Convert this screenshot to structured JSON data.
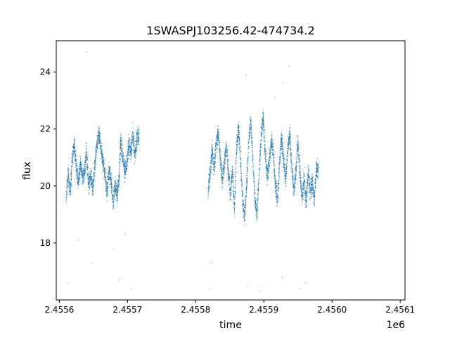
{
  "chart_data": {
    "type": "scatter",
    "title": "1SWASPJ103256.42-474734.2",
    "xlabel": "time",
    "ylabel": "flux",
    "x_offset_label": "1e6",
    "xlim": [
      2455595.5,
      2456107.0
    ],
    "ylim": [
      16.0,
      25.1
    ],
    "x_ticks": [
      2455600,
      2455700,
      2455800,
      2455900,
      2456000,
      2456100
    ],
    "x_tick_labels": [
      "2.4556",
      "2.4557",
      "2.4558",
      "2.4559",
      "2.4560",
      "2.4561"
    ],
    "y_ticks": [
      18,
      20,
      22,
      24
    ],
    "y_tick_labels": [
      "18",
      "20",
      "22",
      "24"
    ],
    "grid": false,
    "point_color": "#1f77b4",
    "point_count_note": "dense light-curve scatter of small points",
    "series": [
      {
        "values": [
          [
            2455610,
            19.6
          ],
          [
            2455613,
            20.4
          ],
          [
            2455616,
            19.8
          ],
          [
            2455619,
            20.9
          ],
          [
            2455622,
            21.5
          ],
          [
            2455625,
            20.6
          ],
          [
            2455628,
            20.1
          ],
          [
            2455631,
            20.8
          ],
          [
            2455634,
            20.3
          ],
          [
            2455637,
            20.5
          ],
          [
            2455640,
            21.2
          ],
          [
            2455643,
            20.0
          ],
          [
            2455646,
            20.4
          ],
          [
            2455649,
            19.9
          ],
          [
            2455652,
            20.7
          ],
          [
            2455655,
            21.4
          ],
          [
            2455658,
            21.9
          ],
          [
            2455661,
            21.3
          ],
          [
            2455664,
            20.9
          ],
          [
            2455667,
            20.4
          ],
          [
            2455670,
            19.8
          ],
          [
            2455673,
            20.6
          ],
          [
            2455676,
            20.2
          ],
          [
            2455679,
            19.4
          ],
          [
            2455682,
            20.1
          ],
          [
            2455685,
            19.7
          ],
          [
            2455688,
            20.4
          ],
          [
            2455690,
            21.6
          ],
          [
            2455693,
            21.1
          ],
          [
            2455696,
            20.5
          ],
          [
            2455699,
            20.8
          ],
          [
            2455702,
            21.5
          ],
          [
            2455705,
            21.2
          ],
          [
            2455708,
            21.8
          ],
          [
            2455711,
            21.0
          ],
          [
            2455714,
            21.7
          ],
          [
            2455818,
            19.8
          ],
          [
            2455821,
            20.4
          ],
          [
            2455824,
            21.3
          ],
          [
            2455827,
            20.6
          ],
          [
            2455830,
            21.5
          ],
          [
            2455833,
            21.9
          ],
          [
            2455836,
            21.0
          ],
          [
            2455839,
            20.2
          ],
          [
            2455842,
            20.8
          ],
          [
            2455845,
            21.4
          ],
          [
            2455848,
            20.5
          ],
          [
            2455851,
            19.7
          ],
          [
            2455854,
            20.6
          ],
          [
            2455857,
            19.2
          ],
          [
            2455860,
            21.4
          ],
          [
            2455863,
            22.0
          ],
          [
            2455866,
            20.8
          ],
          [
            2455869,
            19.4
          ],
          [
            2455872,
            18.9
          ],
          [
            2455875,
            20.2
          ],
          [
            2455878,
            21.6
          ],
          [
            2455881,
            22.3
          ],
          [
            2455884,
            20.9
          ],
          [
            2455887,
            19.5
          ],
          [
            2455890,
            19.0
          ],
          [
            2455893,
            20.4
          ],
          [
            2455896,
            21.8
          ],
          [
            2455899,
            22.4
          ],
          [
            2455902,
            21.2
          ],
          [
            2455905,
            20.3
          ],
          [
            2455908,
            20.9
          ],
          [
            2455911,
            21.6
          ],
          [
            2455914,
            21.1
          ],
          [
            2455917,
            20.0
          ],
          [
            2455920,
            19.5
          ],
          [
            2455923,
            20.8
          ],
          [
            2455926,
            21.7
          ],
          [
            2455929,
            20.9
          ],
          [
            2455932,
            20.2
          ],
          [
            2455935,
            21.3
          ],
          [
            2455938,
            21.8
          ],
          [
            2455941,
            20.7
          ],
          [
            2455944,
            19.8
          ],
          [
            2455947,
            20.5
          ],
          [
            2455950,
            21.6
          ],
          [
            2455953,
            20.4
          ],
          [
            2455956,
            19.6
          ],
          [
            2455959,
            20.3
          ],
          [
            2455962,
            19.4
          ],
          [
            2455965,
            20.5
          ],
          [
            2455968,
            19.8
          ],
          [
            2455971,
            20.1
          ],
          [
            2455974,
            19.5
          ],
          [
            2455977,
            20.6
          ]
        ]
      }
    ],
    "outliers": [
      [
        2455612,
        16.6
      ],
      [
        2455628,
        18.1
      ],
      [
        2455640,
        24.7
      ],
      [
        2455648,
        17.3
      ],
      [
        2455679,
        17.8
      ],
      [
        2455688,
        16.7
      ],
      [
        2455696,
        18.3
      ],
      [
        2455705,
        16.4
      ],
      [
        2455823,
        17.3
      ],
      [
        2455821,
        16.4
      ],
      [
        2455874,
        23.9
      ],
      [
        2455876,
        16.5
      ],
      [
        2455893,
        16.3
      ],
      [
        2455916,
        23.1
      ],
      [
        2455928,
        23.6
      ],
      [
        2455937,
        24.2
      ],
      [
        2455960,
        16.6
      ],
      [
        2455952,
        16.4
      ],
      [
        2455927,
        16.8
      ]
    ]
  }
}
